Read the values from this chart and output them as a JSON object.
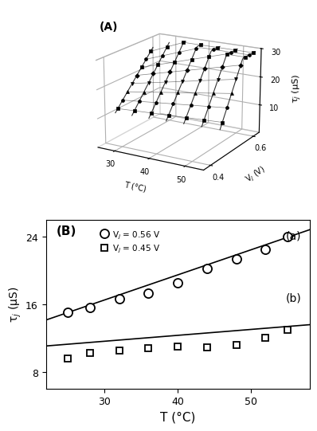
{
  "panel_A": {
    "label": "(A)",
    "T_vals": [
      25,
      30,
      35,
      40,
      45,
      50,
      55
    ],
    "V_pts": [
      0.45,
      0.47,
      0.49,
      0.51,
      0.53,
      0.55,
      0.57,
      0.59
    ],
    "zlim": [
      0,
      30
    ],
    "zticks": [
      10,
      20,
      30
    ],
    "T_ticks": [
      30,
      40,
      50
    ],
    "V_ticks": [
      0.4,
      0.6
    ],
    "tau_at_25_045": 10.0,
    "tau_at_25_059": 25.0,
    "slope_045": 0.07,
    "slope_059": 0.5
  },
  "panel_B": {
    "label": "(B)",
    "xlabel": "T (°C)",
    "legend_circle": "V$_j$ = 0.56 V",
    "legend_square": "V$_j$ = 0.45 V",
    "label_a": "(a)",
    "label_b": "(b)",
    "T_data_circle": [
      25,
      28,
      32,
      36,
      40,
      44,
      48,
      52,
      55
    ],
    "tau_circle": [
      15.0,
      15.6,
      16.6,
      17.3,
      18.5,
      20.2,
      21.3,
      22.5,
      24.0
    ],
    "T_data_square": [
      25,
      28,
      32,
      36,
      40,
      44,
      48,
      52,
      55
    ],
    "tau_square": [
      9.6,
      10.2,
      10.5,
      10.8,
      11.0,
      10.9,
      11.2,
      12.0,
      13.0
    ],
    "slope_a": 0.297,
    "intercept_a": 7.575,
    "slope_b": 0.07,
    "intercept_b": 9.5,
    "xlim": [
      22,
      58
    ],
    "ylim": [
      6,
      26
    ],
    "yticks": [
      8,
      16,
      24
    ],
    "xticks": [
      30,
      40,
      50
    ]
  }
}
